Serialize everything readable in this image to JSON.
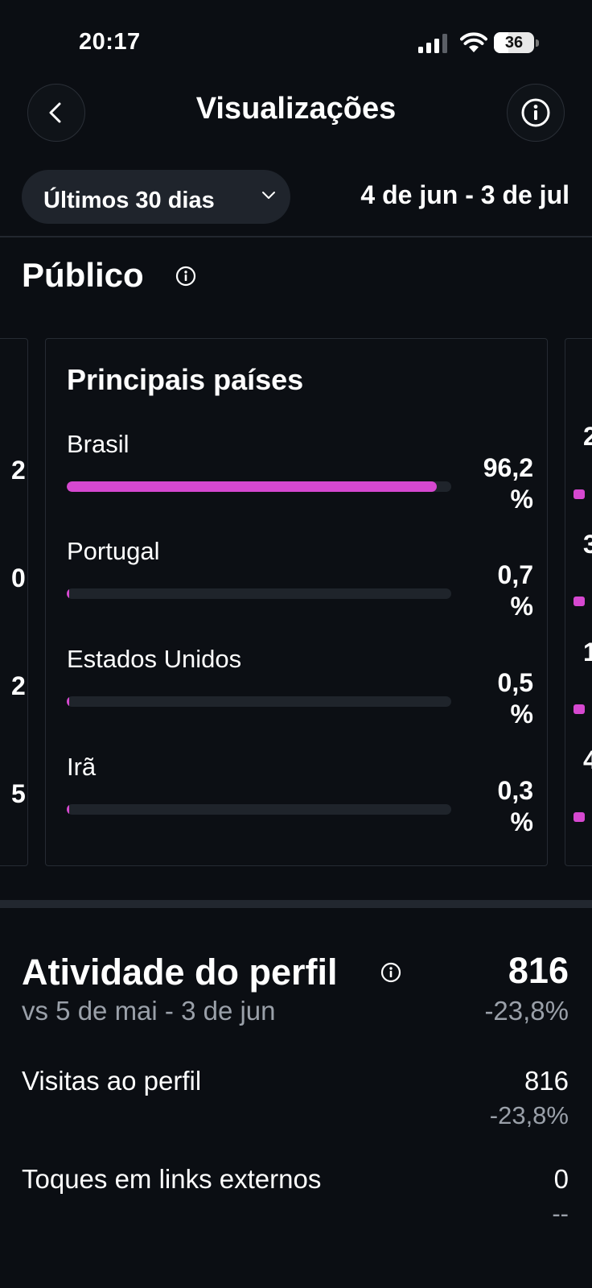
{
  "status_bar": {
    "time": "20:17",
    "battery_percent": 36,
    "battery_label": "36",
    "signal_icon": "cellular-signal-icon",
    "wifi_icon": "wifi-icon"
  },
  "header": {
    "title": "Visualizações",
    "back_icon": "chevron-left-icon",
    "info_icon": "info-icon"
  },
  "range": {
    "label": "Últimos 30 dias",
    "dates": "4 de jun - 3 de jul"
  },
  "audience": {
    "title": "Público",
    "top_countries": {
      "title": "Principais países",
      "items": [
        {
          "name": "Brasil",
          "value_number": "96,2",
          "value_unit": "%",
          "fraction": 0.962
        },
        {
          "name": "Portugal",
          "value_number": "0,7",
          "value_unit": "%",
          "fraction": 0.007
        },
        {
          "name": "Estados Unidos",
          "value_number": "0,5",
          "value_unit": "%",
          "fraction": 0.005
        },
        {
          "name": "Irã",
          "value_number": "0,3",
          "value_unit": "%",
          "fraction": 0.003
        }
      ]
    },
    "left_peek": [
      "2",
      "0",
      "2",
      "5"
    ],
    "right_peek": [
      "2",
      "3",
      "1",
      "4"
    ]
  },
  "profile_activity": {
    "title": "Atividade do perfil",
    "total": "816",
    "compare": "vs 5 de mai - 3 de jun",
    "delta": "-23,8%",
    "rows": [
      {
        "label": "Visitas ao perfil",
        "value": "816",
        "delta": "-23,8%"
      },
      {
        "label": "Toques em links externos",
        "value": "0",
        "delta": "--"
      }
    ]
  },
  "colors": {
    "accent": "#d648d0",
    "background": "#0b0e13",
    "muted_text": "#9aa0a9"
  }
}
